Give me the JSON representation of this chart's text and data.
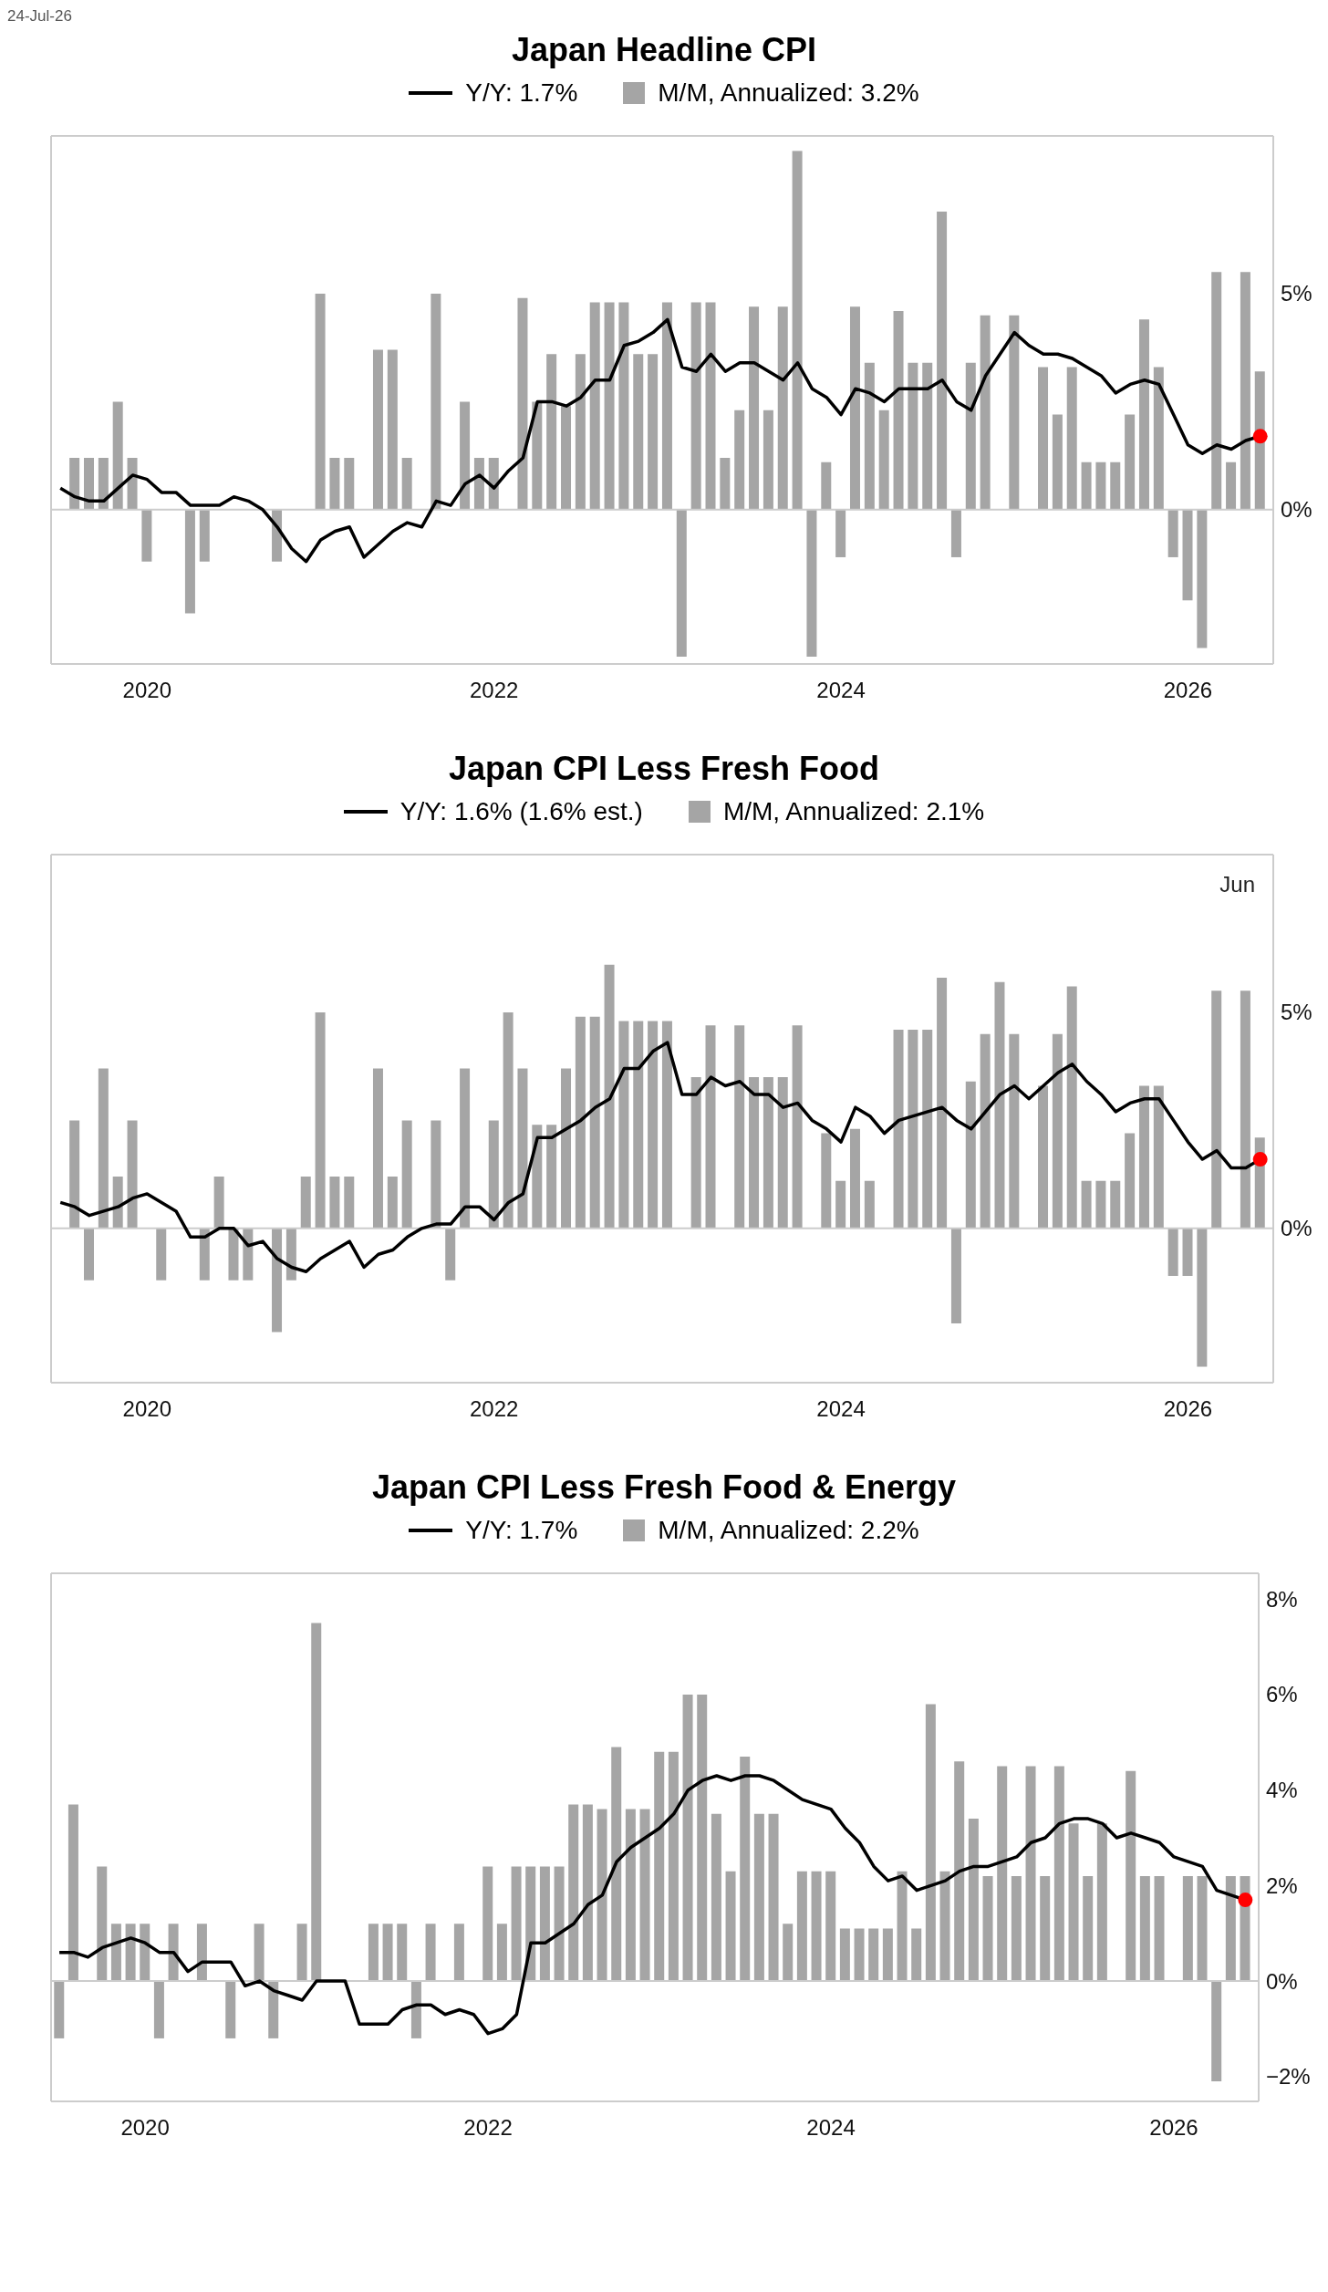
{
  "chart_data": [
    {
      "type": "bar",
      "title": "Japan Headline CPI",
      "annotations": [
        "24-Jul-26"
      ],
      "legend": "top",
      "x": [
        "2019-07",
        "2019-08",
        "2019-09",
        "2019-10",
        "2019-11",
        "2019-12",
        "2020-01",
        "2020-02",
        "2020-03",
        "2020-04",
        "2020-05",
        "2020-06",
        "2020-07",
        "2020-08",
        "2020-09",
        "2020-10",
        "2020-11",
        "2020-12",
        "2021-01",
        "2021-02",
        "2021-03",
        "2021-04",
        "2021-05",
        "2021-06",
        "2021-07",
        "2021-08",
        "2021-09",
        "2021-10",
        "2021-11",
        "2021-12",
        "2022-01",
        "2022-02",
        "2022-03",
        "2022-04",
        "2022-05",
        "2022-06",
        "2022-07",
        "2022-08",
        "2022-09",
        "2022-10",
        "2022-11",
        "2022-12",
        "2023-01",
        "2023-02",
        "2023-03",
        "2023-04",
        "2023-05",
        "2023-06",
        "2023-07",
        "2023-08",
        "2023-09",
        "2023-10",
        "2023-11",
        "2023-12",
        "2024-01",
        "2024-02",
        "2024-03",
        "2024-04",
        "2024-05",
        "2024-06",
        "2024-07",
        "2024-08",
        "2024-09",
        "2024-10",
        "2024-11",
        "2024-12",
        "2025-01",
        "2025-02",
        "2025-03",
        "2025-04",
        "2025-05",
        "2025-06",
        "2025-07",
        "2025-08",
        "2025-09",
        "2025-10",
        "2025-11",
        "2025-12",
        "2026-01",
        "2026-02",
        "2026-03",
        "2026-04",
        "2026-05",
        "2026-06"
      ],
      "series": [
        {
          "name": "Y/Y: 1.7%",
          "type": "line",
          "color": "#000000",
          "values": [
            0.5,
            0.3,
            0.2,
            0.2,
            0.5,
            0.8,
            0.7,
            0.4,
            0.4,
            0.1,
            0.1,
            0.1,
            0.3,
            0.2,
            0.0,
            -0.4,
            -0.9,
            -1.2,
            -0.7,
            -0.5,
            -0.4,
            -1.1,
            -0.8,
            -0.5,
            -0.3,
            -0.4,
            0.2,
            0.1,
            0.6,
            0.8,
            0.5,
            0.9,
            1.2,
            2.5,
            2.5,
            2.4,
            2.6,
            3.0,
            3.0,
            3.8,
            3.9,
            4.1,
            4.4,
            3.3,
            3.2,
            3.6,
            3.2,
            3.4,
            3.4,
            3.2,
            3.0,
            3.4,
            2.8,
            2.6,
            2.2,
            2.8,
            2.7,
            2.5,
            2.8,
            2.8,
            2.8,
            3.0,
            2.5,
            2.3,
            3.1,
            3.6,
            4.1,
            3.8,
            3.6,
            3.6,
            3.5,
            3.3,
            3.1,
            2.7,
            2.9,
            3.0,
            2.9,
            2.2,
            1.5,
            1.3,
            1.5,
            1.4,
            1.6,
            1.7
          ]
        },
        {
          "name": "M/M, Annualized: 3.2%",
          "color": "#a5a5a5",
          "values": [
            null,
            1.2,
            1.2,
            1.2,
            2.5,
            1.2,
            -1.2,
            0,
            0,
            -2.4,
            -1.2,
            0,
            0,
            0,
            null,
            -1.2,
            null,
            0,
            5.0,
            1.2,
            1.2,
            null,
            3.7,
            3.7,
            1.2,
            0,
            5.0,
            null,
            2.5,
            1.2,
            1.2,
            null,
            4.9,
            2.5,
            3.6,
            2.4,
            3.6,
            4.8,
            4.8,
            4.8,
            3.6,
            3.6,
            4.8,
            -3.4,
            4.8,
            4.8,
            1.2,
            2.3,
            4.7,
            2.3,
            4.7,
            8.3,
            -3.4,
            1.1,
            -1.1,
            4.7,
            3.4,
            2.3,
            4.6,
            3.4,
            3.4,
            6.9,
            -1.1,
            3.4,
            4.5,
            null,
            4.5,
            0,
            3.3,
            2.2,
            3.3,
            1.1,
            1.1,
            1.1,
            2.2,
            4.4,
            3.3,
            -1.1,
            -2.1,
            -3.2,
            5.5,
            1.1,
            5.5,
            3.2
          ]
        },
        {
          "type": "scatter",
          "color": "#ff0000",
          "x": [
            "2026-06"
          ],
          "values": [
            1.7
          ]
        }
      ],
      "xlim": [
        "2019-06-12",
        "2026-06-29"
      ],
      "xticks": [
        "2020",
        "2022",
        "2024",
        "2026"
      ],
      "ylim": [
        -3.57,
        8.65
      ],
      "yticks": [
        {
          "value": 0,
          "label": "0%"
        },
        {
          "value": 5,
          "label": "5%"
        }
      ],
      "ref_lines": [
        {
          "axis": "y",
          "value": 0,
          "color": "#cccccc"
        }
      ]
    },
    {
      "type": "bar",
      "title": "Japan CPI Less Fresh Food",
      "annotations": [
        "Jun"
      ],
      "legend": "top",
      "x": [
        "2019-07",
        "2019-08",
        "2019-09",
        "2019-10",
        "2019-11",
        "2019-12",
        "2020-01",
        "2020-02",
        "2020-03",
        "2020-04",
        "2020-05",
        "2020-06",
        "2020-07",
        "2020-08",
        "2020-09",
        "2020-10",
        "2020-11",
        "2020-12",
        "2021-01",
        "2021-02",
        "2021-03",
        "2021-04",
        "2021-05",
        "2021-06",
        "2021-07",
        "2021-08",
        "2021-09",
        "2021-10",
        "2021-11",
        "2021-12",
        "2022-01",
        "2022-02",
        "2022-03",
        "2022-04",
        "2022-05",
        "2022-06",
        "2022-07",
        "2022-08",
        "2022-09",
        "2022-10",
        "2022-11",
        "2022-12",
        "2023-01",
        "2023-02",
        "2023-03",
        "2023-04",
        "2023-05",
        "2023-06",
        "2023-07",
        "2023-08",
        "2023-09",
        "2023-10",
        "2023-11",
        "2023-12",
        "2024-01",
        "2024-02",
        "2024-03",
        "2024-04",
        "2024-05",
        "2024-06",
        "2024-07",
        "2024-08",
        "2024-09",
        "2024-10",
        "2024-11",
        "2024-12",
        "2025-01",
        "2025-02",
        "2025-03",
        "2025-04",
        "2025-05",
        "2025-06",
        "2025-07",
        "2025-08",
        "2025-09",
        "2025-10",
        "2025-11",
        "2025-12",
        "2026-01",
        "2026-02",
        "2026-03",
        "2026-04",
        "2026-05",
        "2026-06"
      ],
      "series": [
        {
          "name": "Y/Y: 1.6% (1.6% est.)",
          "type": "line",
          "color": "#000000",
          "values": [
            0.6,
            0.5,
            0.3,
            0.4,
            0.5,
            0.7,
            0.8,
            0.6,
            0.4,
            -0.2,
            -0.2,
            0.0,
            0.0,
            -0.4,
            -0.3,
            -0.7,
            -0.9,
            -1.0,
            -0.7,
            -0.5,
            -0.3,
            -0.9,
            -0.6,
            -0.5,
            -0.2,
            0.0,
            0.1,
            0.1,
            0.5,
            0.5,
            0.2,
            0.6,
            0.8,
            2.1,
            2.1,
            2.3,
            2.5,
            2.8,
            3.0,
            3.7,
            3.7,
            4.1,
            4.3,
            3.1,
            3.1,
            3.5,
            3.3,
            3.4,
            3.1,
            3.1,
            2.8,
            2.9,
            2.5,
            2.3,
            2.0,
            2.8,
            2.6,
            2.2,
            2.5,
            2.6,
            2.7,
            2.8,
            2.5,
            2.3,
            2.7,
            3.1,
            3.3,
            3.0,
            3.3,
            3.6,
            3.8,
            3.4,
            3.1,
            2.7,
            2.9,
            3.0,
            3.0,
            2.5,
            2.0,
            1.6,
            1.8,
            1.4,
            1.4,
            1.6
          ]
        },
        {
          "name": "M/M, Annualized: 2.1%",
          "color": "#a5a5a5",
          "values": [
            null,
            2.5,
            -1.2,
            3.7,
            1.2,
            2.5,
            0,
            -1.2,
            0,
            null,
            -1.2,
            1.2,
            -1.2,
            -1.2,
            0,
            -2.4,
            -1.2,
            1.2,
            5.0,
            1.2,
            1.2,
            null,
            3.7,
            1.2,
            2.5,
            0,
            2.5,
            -1.2,
            3.7,
            0,
            2.5,
            5.0,
            3.7,
            2.4,
            2.4,
            3.7,
            4.9,
            4.9,
            6.1,
            4.8,
            4.8,
            4.8,
            4.8,
            null,
            3.5,
            4.7,
            0,
            4.7,
            3.5,
            3.5,
            3.5,
            4.7,
            0,
            2.2,
            1.1,
            2.3,
            1.1,
            0,
            4.6,
            4.6,
            4.6,
            5.8,
            -2.2,
            3.4,
            4.5,
            5.7,
            4.5,
            0,
            3.3,
            4.5,
            5.6,
            1.1,
            1.1,
            1.1,
            2.2,
            3.3,
            3.3,
            -1.1,
            -1.1,
            -3.2,
            5.5,
            0,
            5.5,
            2.1
          ]
        },
        {
          "type": "scatter",
          "color": "#ff0000",
          "x": [
            "2026-06"
          ],
          "values": [
            1.6
          ]
        }
      ],
      "xlim": [
        "2019-06-12",
        "2026-06-29"
      ],
      "xticks": [
        "2020",
        "2022",
        "2024",
        "2026"
      ],
      "ylim": [
        -3.57,
        8.65
      ],
      "yticks": [
        {
          "value": 0,
          "label": "0%"
        },
        {
          "value": 5,
          "label": "5%"
        }
      ],
      "ref_lines": [
        {
          "axis": "y",
          "value": 0,
          "color": "#cccccc"
        }
      ]
    },
    {
      "type": "bar",
      "title": "Japan CPI Less Fresh Food & Energy",
      "legend": "top",
      "x": [
        "2019-07",
        "2019-08",
        "2019-09",
        "2019-10",
        "2019-11",
        "2019-12",
        "2020-01",
        "2020-02",
        "2020-03",
        "2020-04",
        "2020-05",
        "2020-06",
        "2020-07",
        "2020-08",
        "2020-09",
        "2020-10",
        "2020-11",
        "2020-12",
        "2021-01",
        "2021-02",
        "2021-03",
        "2021-04",
        "2021-05",
        "2021-06",
        "2021-07",
        "2021-08",
        "2021-09",
        "2021-10",
        "2021-11",
        "2021-12",
        "2022-01",
        "2022-02",
        "2022-03",
        "2022-04",
        "2022-05",
        "2022-06",
        "2022-07",
        "2022-08",
        "2022-09",
        "2022-10",
        "2022-11",
        "2022-12",
        "2023-01",
        "2023-02",
        "2023-03",
        "2023-04",
        "2023-05",
        "2023-06",
        "2023-07",
        "2023-08",
        "2023-09",
        "2023-10",
        "2023-11",
        "2023-12",
        "2024-01",
        "2024-02",
        "2024-03",
        "2024-04",
        "2024-05",
        "2024-06",
        "2024-07",
        "2024-08",
        "2024-09",
        "2024-10",
        "2024-11",
        "2024-12",
        "2025-01",
        "2025-02",
        "2025-03",
        "2025-04",
        "2025-05",
        "2025-06",
        "2025-07",
        "2025-08",
        "2025-09",
        "2025-10",
        "2025-11",
        "2025-12",
        "2026-01",
        "2026-02",
        "2026-03",
        "2026-04",
        "2026-05",
        "2026-06"
      ],
      "series": [
        {
          "name": "Y/Y: 1.7%",
          "type": "line",
          "color": "#000000",
          "values": [
            0.6,
            0.6,
            0.5,
            0.7,
            0.8,
            0.9,
            0.8,
            0.6,
            0.6,
            0.2,
            0.4,
            0.4,
            0.4,
            -0.1,
            0.0,
            -0.2,
            -0.3,
            -0.4,
            0.0,
            0.0,
            0.0,
            -0.9,
            -0.9,
            -0.9,
            -0.6,
            -0.5,
            -0.5,
            -0.7,
            -0.6,
            -0.7,
            -1.1,
            -1.0,
            -0.7,
            0.8,
            0.8,
            1.0,
            1.2,
            1.6,
            1.8,
            2.5,
            2.8,
            3.0,
            3.2,
            3.5,
            4.0,
            4.2,
            4.3,
            4.2,
            4.3,
            4.3,
            4.2,
            4.0,
            3.8,
            3.7,
            3.6,
            3.2,
            2.9,
            2.4,
            2.1,
            2.2,
            1.9,
            2.0,
            2.1,
            2.3,
            2.4,
            2.4,
            2.5,
            2.6,
            2.9,
            3.0,
            3.3,
            3.4,
            3.4,
            3.3,
            3.0,
            3.1,
            3.0,
            2.9,
            2.6,
            2.5,
            2.4,
            1.9,
            1.8,
            1.7
          ]
        },
        {
          "name": "M/M, Annualized: 2.2%",
          "color": "#a5a5a5",
          "values": [
            -1.2,
            3.7,
            0,
            2.4,
            1.2,
            1.2,
            1.2,
            -1.2,
            1.2,
            null,
            1.2,
            0,
            -1.2,
            null,
            1.2,
            -1.2,
            0,
            1.2,
            7.5,
            0,
            0,
            null,
            1.2,
            1.2,
            1.2,
            -1.2,
            1.2,
            null,
            1.2,
            0,
            2.4,
            1.2,
            2.4,
            2.4,
            2.4,
            2.4,
            3.7,
            3.7,
            3.6,
            4.9,
            3.6,
            3.6,
            4.8,
            4.8,
            6.0,
            6.0,
            3.5,
            2.3,
            4.7,
            3.5,
            3.5,
            1.2,
            2.3,
            2.3,
            2.3,
            1.1,
            1.1,
            1.1,
            1.1,
            2.3,
            1.1,
            5.8,
            2.3,
            4.6,
            3.4,
            2.2,
            4.5,
            2.2,
            4.5,
            2.2,
            4.5,
            3.3,
            2.2,
            3.3,
            0,
            4.4,
            2.2,
            2.2,
            0,
            2.2,
            2.2,
            -2.1,
            2.2,
            2.2
          ]
        },
        {
          "type": "scatter",
          "color": "#ff0000",
          "x": [
            "2026-06"
          ],
          "values": [
            1.7
          ]
        }
      ],
      "xlim": [
        "2019-06-14",
        "2026-06-30"
      ],
      "xticks": [
        "2020",
        "2022",
        "2024",
        "2026"
      ],
      "ylim": [
        -2.52,
        8.54
      ],
      "yticks": [
        {
          "value": -2,
          "label": "−2%"
        },
        {
          "value": 0,
          "label": "0%"
        },
        {
          "value": 2,
          "label": "2%"
        },
        {
          "value": 4,
          "label": "4%"
        },
        {
          "value": 6,
          "label": "6%"
        },
        {
          "value": 8,
          "label": "8%"
        }
      ],
      "ref_lines": [
        {
          "axis": "y",
          "value": 0,
          "color": "#cccccc"
        }
      ]
    }
  ]
}
